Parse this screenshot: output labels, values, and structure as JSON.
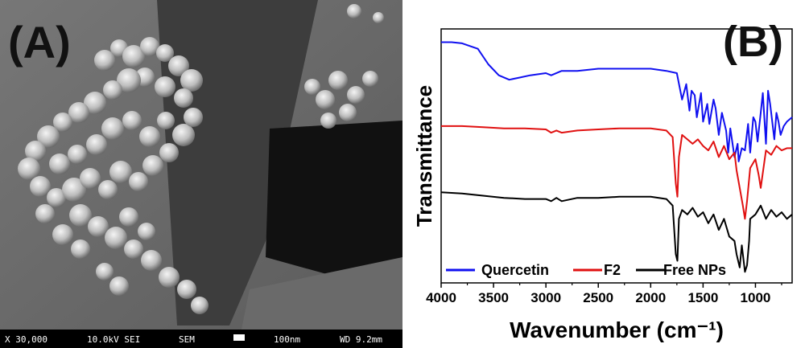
{
  "panel_a": {
    "label": "(A)",
    "info_bar": {
      "magnification": "X 30,000",
      "voltage_mode": "10.0kV SEI",
      "instrument": "SEM",
      "scale": "100nm",
      "working_distance": "WD 9.2mm"
    }
  },
  "panel_b": {
    "label": "(B)"
  },
  "chart_data": {
    "type": "line",
    "xlabel": "Wavenumber (cm⁻¹)",
    "ylabel": "Transmittance",
    "xlim": [
      4000,
      650
    ],
    "x_reversed": true,
    "x_ticks": [
      4000,
      3500,
      3000,
      2500,
      2000,
      1500,
      1000
    ],
    "y_ticks_shown": false,
    "grid": false,
    "legend": {
      "placement": "bottom",
      "entries": [
        "Quercetin",
        "F2",
        "Free NPs"
      ]
    },
    "colors": {
      "Quercetin": "#1010f0",
      "F2": "#e01010",
      "Free NPs": "#000000"
    },
    "series": [
      {
        "name": "Quercetin",
        "x": [
          4000,
          3900,
          3800,
          3650,
          3550,
          3450,
          3350,
          3250,
          3150,
          3000,
          2950,
          2850,
          2700,
          2500,
          2300,
          2000,
          1850,
          1750,
          1700,
          1660,
          1630,
          1610,
          1580,
          1560,
          1520,
          1500,
          1460,
          1440,
          1400,
          1380,
          1350,
          1320,
          1280,
          1260,
          1240,
          1200,
          1170,
          1160,
          1130,
          1100,
          1070,
          1050,
          1020,
          1000,
          980,
          950,
          930,
          900,
          880,
          860,
          820,
          800,
          780,
          760,
          730,
          700,
          650
        ],
        "y": [
          94,
          94,
          93.5,
          91,
          84,
          79,
          77,
          78,
          79,
          80,
          79,
          81,
          81,
          82,
          82,
          82,
          81,
          80,
          68,
          75,
          63,
          72,
          70,
          60,
          71,
          58,
          66,
          57,
          68,
          64,
          52,
          62,
          54,
          44,
          55,
          42,
          48,
          40,
          46,
          45,
          57,
          44,
          60,
          58,
          49,
          62,
          71,
          48,
          72,
          66,
          50,
          62,
          58,
          52,
          56,
          58,
          60
        ]
      },
      {
        "name": "F2",
        "x": [
          4000,
          3800,
          3600,
          3400,
          3200,
          3000,
          2950,
          2900,
          2850,
          2700,
          2500,
          2300,
          2000,
          1850,
          1790,
          1760,
          1745,
          1730,
          1700,
          1650,
          1600,
          1550,
          1500,
          1450,
          1400,
          1350,
          1300,
          1250,
          1200,
          1180,
          1150,
          1120,
          1100,
          1080,
          1050,
          1000,
          970,
          950,
          900,
          850,
          800,
          750,
          700,
          650
        ],
        "y": [
          56,
          56,
          55.5,
          55,
          55,
          54.5,
          53,
          54,
          53,
          54,
          54.5,
          55,
          55,
          54,
          51,
          30,
          24,
          42,
          52,
          50,
          48,
          50,
          47,
          45,
          49,
          42,
          47,
          41,
          44,
          36,
          28,
          20,
          14,
          22,
          37,
          41,
          34,
          28,
          45,
          43,
          47,
          45,
          46,
          46
        ]
      },
      {
        "name": "Free NPs",
        "x": [
          4000,
          3800,
          3600,
          3400,
          3200,
          3000,
          2950,
          2900,
          2850,
          2700,
          2500,
          2300,
          2000,
          1850,
          1790,
          1760,
          1745,
          1730,
          1700,
          1650,
          1600,
          1550,
          1500,
          1450,
          1400,
          1350,
          1300,
          1250,
          1200,
          1180,
          1150,
          1130,
          1100,
          1080,
          1060,
          1050,
          1000,
          950,
          900,
          850,
          800,
          750,
          700,
          650
        ],
        "y": [
          26,
          25.5,
          24.5,
          23.5,
          23,
          23,
          22,
          23.5,
          22,
          23.5,
          23.5,
          24,
          24,
          23,
          20,
          -2,
          -5,
          14,
          18,
          16,
          19,
          15,
          17,
          12,
          16,
          9,
          14,
          6,
          4,
          -2,
          -8,
          2,
          -10,
          -7,
          4,
          14,
          16,
          20,
          14,
          18,
          15,
          17,
          14,
          16
        ]
      }
    ]
  }
}
